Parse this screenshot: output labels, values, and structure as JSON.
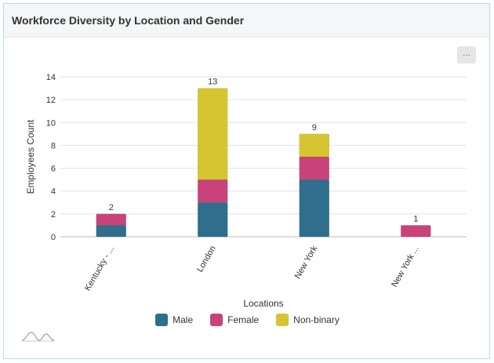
{
  "card": {
    "title": "Workforce Diversity by Location and Gender",
    "menu_label": "···"
  },
  "colors": {
    "Male": "#2f6e8c",
    "Female": "#c9437a",
    "Non-binary": "#d6c530"
  },
  "icons": {
    "menu": "ellipsis-icon",
    "logo": "wave-logo-icon"
  },
  "chart_data": {
    "type": "bar",
    "stacked": true,
    "title": "Workforce Diversity by Location and Gender",
    "xlabel": "Locations",
    "ylabel": "Employees Count",
    "ylim": [
      0,
      14
    ],
    "yticks": [
      0,
      2,
      4,
      6,
      8,
      10,
      12,
      14
    ],
    "categories": [
      "Kentucky - ...",
      "London",
      "New York",
      "New York ..."
    ],
    "series": [
      {
        "name": "Male",
        "values": [
          1,
          3,
          5,
          0
        ]
      },
      {
        "name": "Female",
        "values": [
          1,
          2,
          2,
          1
        ]
      },
      {
        "name": "Non-binary",
        "values": [
          0,
          8,
          2,
          0
        ]
      }
    ],
    "totals": [
      2,
      13,
      9,
      1
    ],
    "legend": {
      "position": "bottom",
      "entries": [
        "Male",
        "Female",
        "Non-binary"
      ]
    },
    "grid": true
  }
}
